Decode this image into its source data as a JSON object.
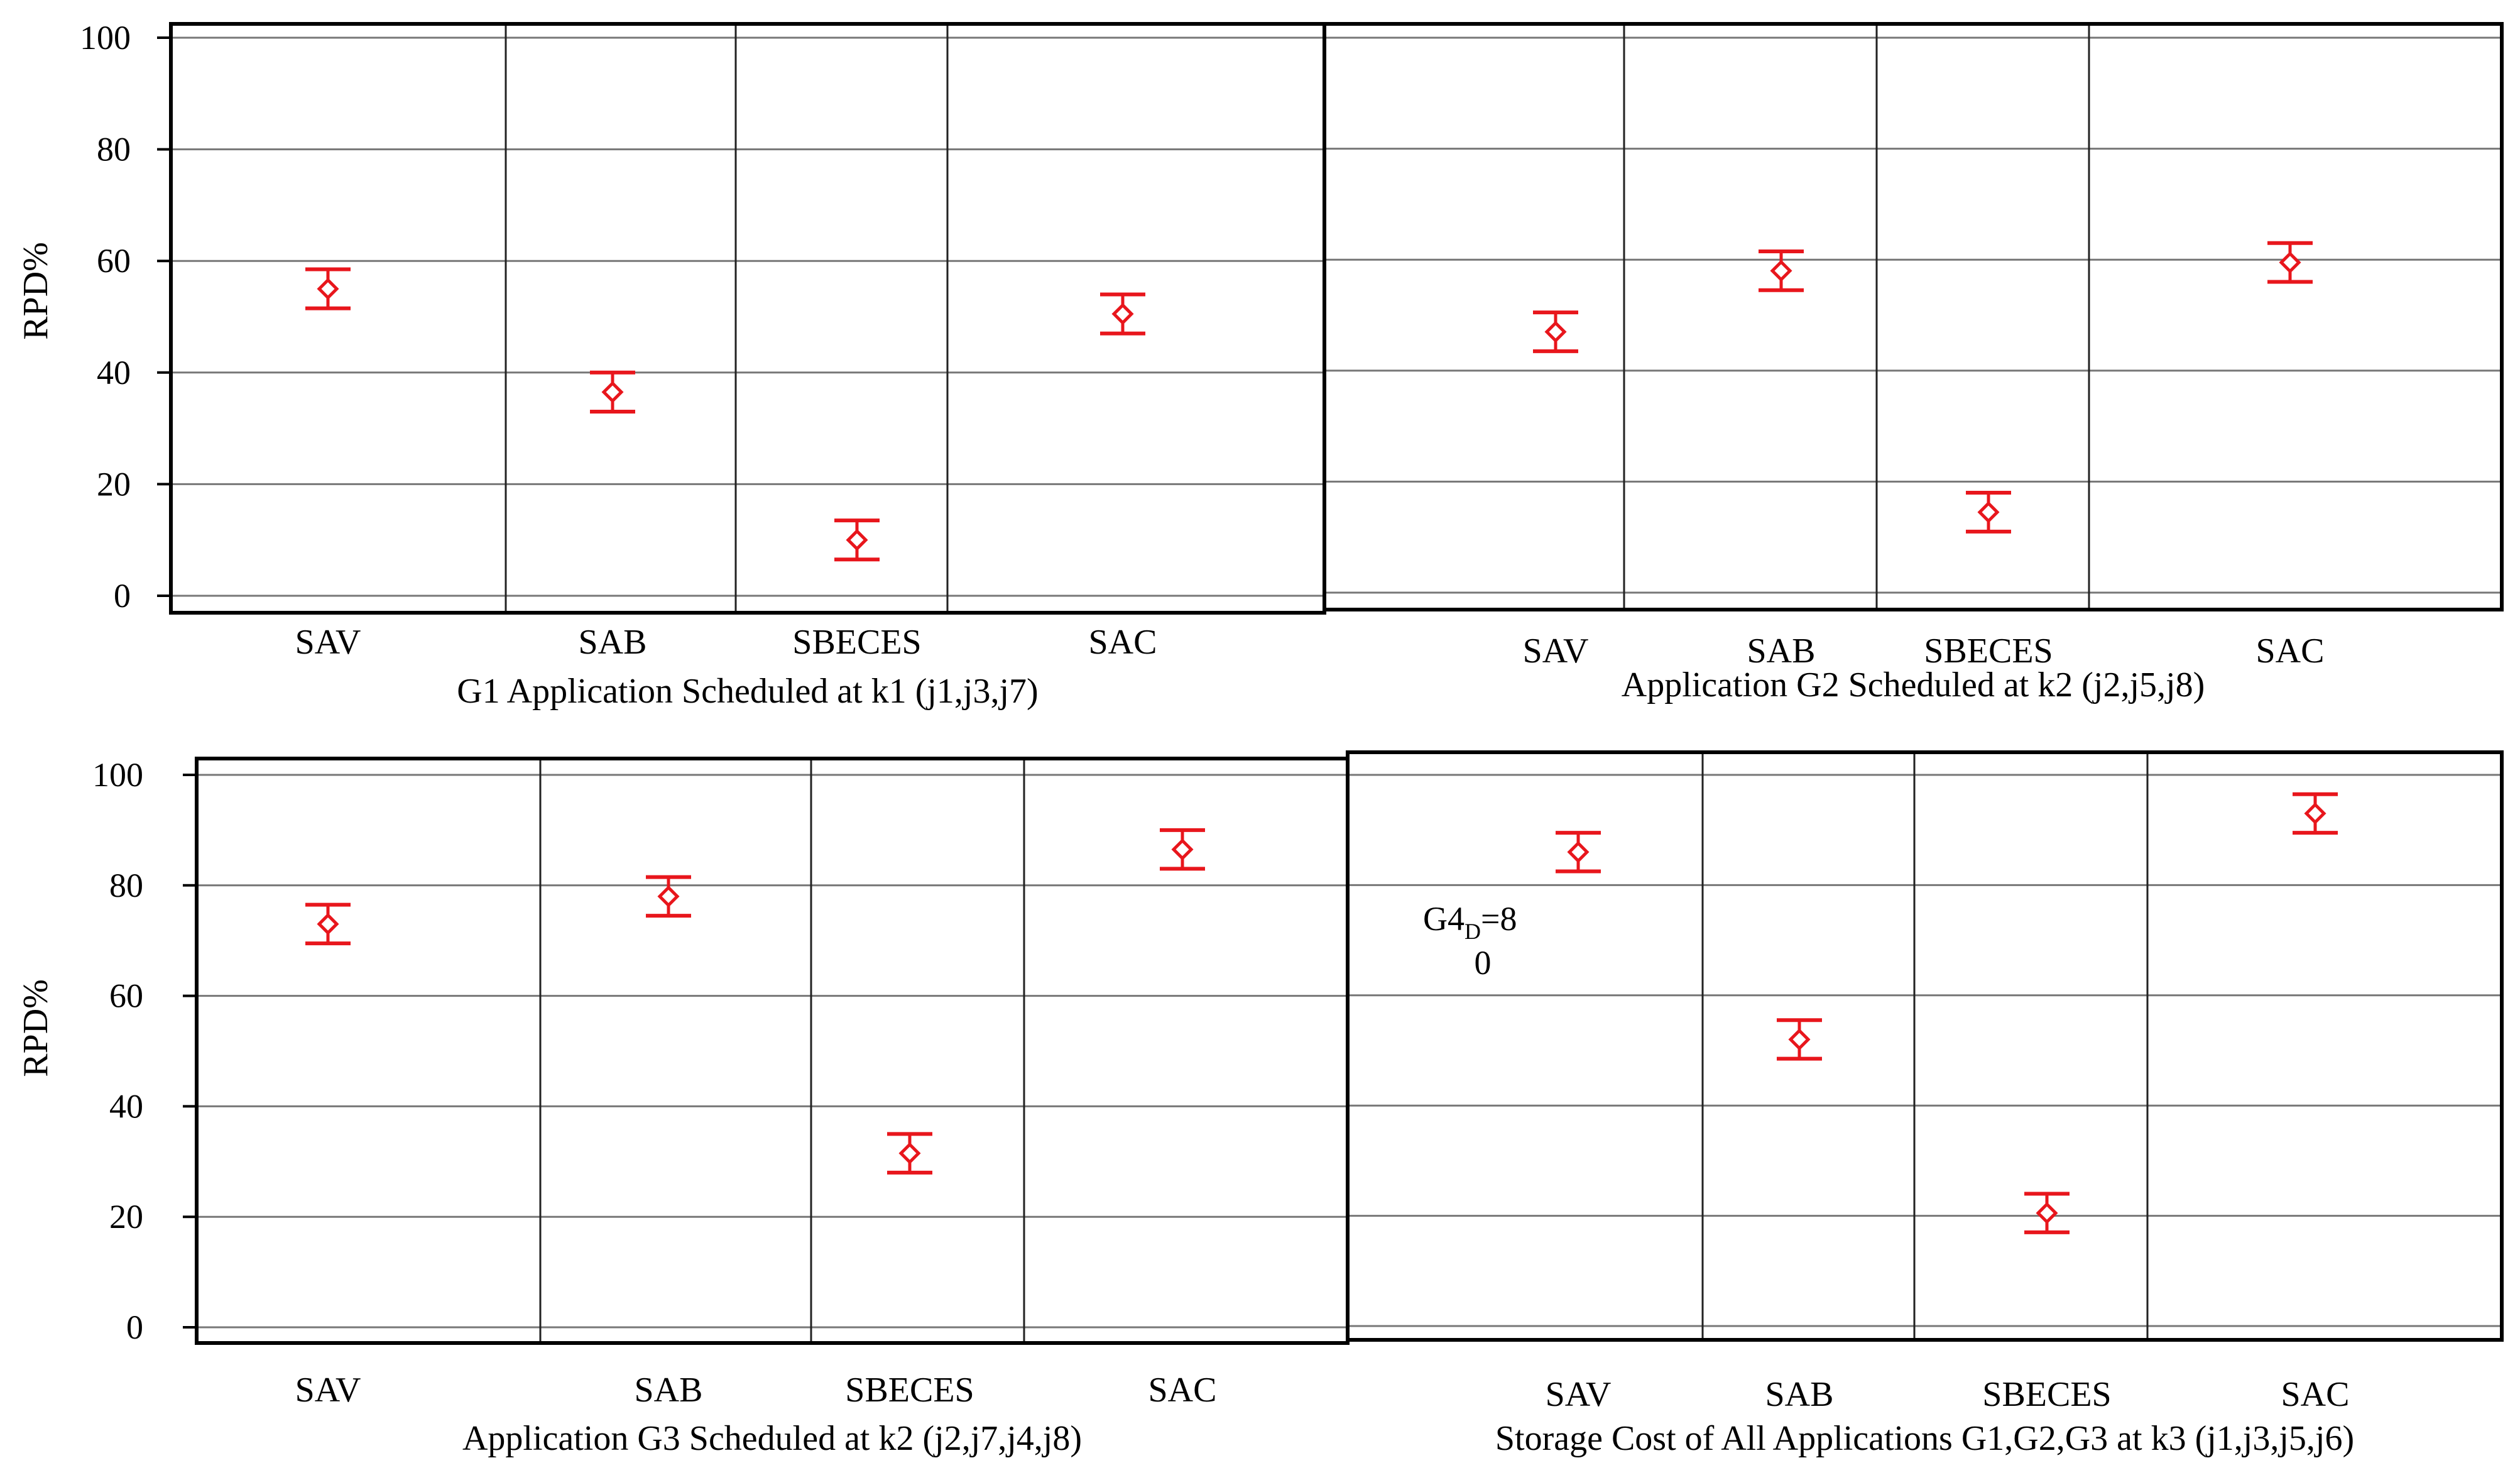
{
  "chart_data": [
    {
      "type": "scatter",
      "title": "",
      "xlabel": "G1 Application Scheduled at k1 (j1,j3,j7)",
      "ylabel": "RPD%",
      "categories": [
        "SAV",
        "SAB",
        "SBECES",
        "SAC"
      ],
      "values": [
        55.0,
        36.5,
        10.0,
        50.5
      ],
      "error_low": [
        51.5,
        33.0,
        6.5,
        47.0
      ],
      "error_high": [
        58.5,
        40.0,
        13.5,
        54.0
      ],
      "ylim": [
        0,
        100
      ],
      "yticks": [
        "0",
        "20",
        "40",
        "60",
        "80",
        "100"
      ],
      "grid": true,
      "annotation": "",
      "color": "#e8161c"
    },
    {
      "type": "scatter",
      "title": "",
      "xlabel": "Application G2 Scheduled at k2 (j2,j5,j8)",
      "ylabel": "",
      "categories": [
        "SAV",
        "SAB",
        "SBECES",
        "SAC"
      ],
      "values": [
        47.0,
        58.0,
        14.5,
        59.5
      ],
      "error_low": [
        43.5,
        54.5,
        11.0,
        56.0
      ],
      "error_high": [
        50.5,
        61.5,
        18.0,
        63.0
      ],
      "ylim": [
        0,
        100
      ],
      "yticks": [],
      "grid": true,
      "annotation": "",
      "color": "#e8161c"
    },
    {
      "type": "scatter",
      "title": "",
      "xlabel": "Application G3 Scheduled at k2 (j2,j7,j4,j8)",
      "ylabel": "RPD%",
      "categories": [
        "SAV",
        "SAB",
        "SBECES",
        "SAC"
      ],
      "values": [
        73.0,
        78.0,
        31.5,
        86.5
      ],
      "error_low": [
        69.5,
        74.5,
        28.0,
        83.0
      ],
      "error_high": [
        76.5,
        81.5,
        35.0,
        90.0
      ],
      "ylim": [
        0,
        100
      ],
      "yticks": [
        "0",
        "20",
        "40",
        "60",
        "80",
        "100"
      ],
      "grid": true,
      "annotation": "",
      "color": "#e8161c"
    },
    {
      "type": "scatter",
      "title": "",
      "xlabel": "Storage Cost of All Applications G1,G2,G3 at k3 (j1,j3,j5,j6)",
      "ylabel": "",
      "categories": [
        "SAV",
        "SAB",
        "SBECES",
        "SAC"
      ],
      "values": [
        86.0,
        52.0,
        20.5,
        93.0
      ],
      "error_low": [
        82.5,
        48.5,
        17.0,
        89.5
      ],
      "error_high": [
        89.5,
        55.5,
        24.0,
        96.5
      ],
      "ylim": [
        0,
        100
      ],
      "yticks": [],
      "grid": true,
      "annotation": {
        "base": "G4",
        "sub": "D",
        "rest": "=8",
        "line2": "0"
      },
      "color": "#e8161c"
    }
  ]
}
